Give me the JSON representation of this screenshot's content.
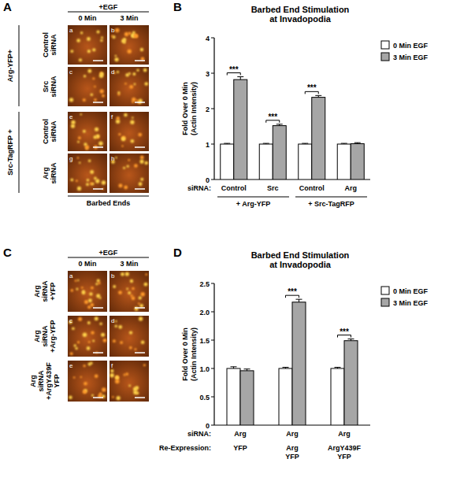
{
  "chart_data": [
    {
      "panel": "B",
      "type": "bar",
      "title": "Barbed End Stimulation\nat Invadopodia",
      "y_label": "Fold Over 0 Min\n(Actin Intensity)",
      "categories": [
        "Control",
        "Src",
        "Control",
        "Arg"
      ],
      "category_label": "siRNA:",
      "groups": [
        {
          "label": "+ Arg-YFP",
          "categories": [
            0,
            1
          ]
        },
        {
          "label": "+ Src-TagRFP",
          "categories": [
            2,
            3
          ]
        }
      ],
      "series": [
        {
          "name": "0 Min EGF",
          "color": "#ffffff",
          "values": [
            1,
            1,
            1,
            1
          ],
          "errors": [
            0.02,
            0.02,
            0.02,
            0.02
          ]
        },
        {
          "name": "3 Min EGF",
          "color": "#a6a6a6",
          "values": [
            2.82,
            1.52,
            2.32,
            1.01
          ],
          "errors": [
            0.08,
            0.04,
            0.05,
            0.03
          ]
        }
      ],
      "ylim": [
        0,
        4
      ],
      "yticks": [
        0,
        1,
        2,
        3,
        4
      ],
      "legend": "right",
      "significance": [
        {
          "label": "***",
          "category": 0
        },
        {
          "label": "***",
          "category": 1
        },
        {
          "label": "***",
          "category": 2
        }
      ]
    },
    {
      "panel": "D",
      "type": "bar",
      "title": "Barbed End Stimulation\nat Invadopodia",
      "y_label": "Fold Over 0 Min\n(Actin Intensity)",
      "categories": [
        "Arg",
        "Arg",
        "Arg"
      ],
      "category_label": "siRNA:",
      "extra_rows": [
        {
          "label": "Re-Expression:",
          "values": [
            "YFP",
            "Arg\nYFP",
            "ArgY439F\nYFP"
          ]
        }
      ],
      "series": [
        {
          "name": "0 Min EGF",
          "color": "#ffffff",
          "values": [
            1,
            1,
            1
          ],
          "errors": [
            0.03,
            0.02,
            0.02
          ]
        },
        {
          "name": "3 Min EGF",
          "color": "#a6a6a6",
          "values": [
            0.96,
            2.17,
            1.49
          ],
          "errors": [
            0.03,
            0.05,
            0.03
          ]
        }
      ],
      "ylim": [
        0,
        2.5
      ],
      "yticks": [
        0,
        0.5,
        {
          "value": 1,
          "label": "1.0"
        },
        1.5,
        {
          "value": 2,
          "label": "2.0"
        },
        2.5
      ],
      "legend": "right",
      "significance": [
        {
          "label": "***",
          "category": 1
        },
        {
          "label": "***",
          "category": 2
        }
      ]
    }
  ],
  "images": [
    {
      "panel": "A",
      "header": "+EGF",
      "columns": [
        "0 Min",
        "3 Min"
      ],
      "groups": [
        {
          "label": "Arg-YFP+",
          "rows": [
            {
              "label": "Control\nsiRNA",
              "tiles": [
                "a",
                "b"
              ]
            },
            {
              "label": "Src\nsiRNA",
              "tiles": [
                "c",
                "d"
              ]
            }
          ]
        },
        {
          "label": "Src-TagRFP +",
          "rows": [
            {
              "label": "Control\nsiRNA",
              "tiles": [
                "e",
                "f"
              ]
            },
            {
              "label": "Arg\nsiRNA",
              "tiles": [
                "g",
                "h"
              ]
            }
          ]
        }
      ],
      "footer": "Barbed Ends"
    },
    {
      "panel": "C",
      "header": "+EGF",
      "columns": [
        "0 Min",
        "3 Min"
      ],
      "groups": [
        {
          "rows": [
            {
              "label": "Arg\nsiRNA\n+YFP",
              "tiles": [
                "a",
                "b"
              ]
            },
            {
              "label": "Arg\nsiRNA\n+Arg-YFP",
              "tiles": [
                "c",
                "d"
              ]
            },
            {
              "label": "Arg\nsiRNA\n+ArgY439F\nYFP",
              "tiles": [
                "e",
                "f"
              ]
            }
          ]
        }
      ]
    }
  ]
}
